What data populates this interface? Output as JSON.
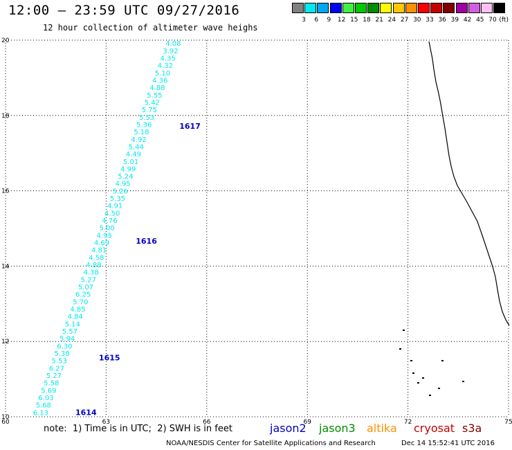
{
  "header": {
    "title": "12:00 — 23:59 UTC 09/27/2016",
    "subtitle": "12 hour collection of altimeter wave heighs"
  },
  "legend": {
    "bins": [
      {
        "label": "3",
        "color": "#808080"
      },
      {
        "label": "6",
        "color": "#00e8f0"
      },
      {
        "label": "9",
        "color": "#00a8f0"
      },
      {
        "label": "12",
        "color": "#0000f0"
      },
      {
        "label": "15",
        "color": "#40f040"
      },
      {
        "label": "18",
        "color": "#00c800"
      },
      {
        "label": "21",
        "color": "#008c00"
      },
      {
        "label": "24",
        "color": "#ffff00"
      },
      {
        "label": "27",
        "color": "#ffc800"
      },
      {
        "label": "30",
        "color": "#ff9000"
      },
      {
        "label": "33",
        "color": "#ff0000"
      },
      {
        "label": "36",
        "color": "#c80000"
      },
      {
        "label": "39",
        "color": "#800000"
      },
      {
        "label": "42",
        "color": "#a000a0"
      },
      {
        "label": "45",
        "color": "#d060e0"
      },
      {
        "label": "70",
        "color": "#ffc0f0"
      },
      {
        "label": "",
        "color": "#000000"
      }
    ],
    "unit": "(ft)"
  },
  "chart_data": {
    "type": "scatter",
    "title": "12:00 — 23:59 UTC 09/27/2016",
    "subtitle": "12 hour collection of altimeter wave heighs",
    "xlim": [
      60,
      75
    ],
    "ylim": [
      10,
      20
    ],
    "x_ticks": [
      "60",
      "63",
      "66",
      "69",
      "72",
      "75"
    ],
    "y_ticks": [
      "10",
      "12",
      "14",
      "16",
      "18",
      "20"
    ],
    "grid": true,
    "point_color": "#00e8f0",
    "label_color": "#0000c8",
    "start": {
      "lon": 61.05,
      "lat": 10.05
    },
    "end": {
      "lon": 65.0,
      "lat": 19.85
    },
    "wave_heights_ft": [
      "6.13",
      "5.68",
      "6.03",
      "5.69",
      "5.58",
      "5.27",
      "6.27",
      "5.53",
      "5.38",
      "6.30",
      "5.94",
      "5.57",
      "5.14",
      "4.84",
      "4.85",
      "5.70",
      "6.25",
      "5.07",
      "5.27",
      "4.38",
      "4.88",
      "4.58",
      "4.81",
      "4.69",
      "4.95",
      "5.00",
      "4.76",
      "4.50",
      "4.91",
      "5.35",
      "5.26",
      "4.95",
      "5.24",
      "4.99",
      "5.01",
      "4.49",
      "5.44",
      "4.92",
      "5.18",
      "5.36",
      "5.53",
      "5.75",
      "5.42",
      "5.55",
      "4.88",
      "4.36",
      "5.10",
      "4.32",
      "4.35",
      "3.92",
      "4.08"
    ],
    "time_labels": [
      {
        "text": "1614",
        "lon": 62.4,
        "lat": 10.05
      },
      {
        "text": "1615",
        "lon": 63.1,
        "lat": 11.5
      },
      {
        "text": "1616",
        "lon": 64.2,
        "lat": 14.6
      },
      {
        "text": "1617",
        "lon": 65.5,
        "lat": 17.65
      }
    ]
  },
  "notes": {
    "text": "note:  1) Time is in UTC;  2) SWH is in feet"
  },
  "satellites": [
    {
      "name": "jason2",
      "color": "#0000c8"
    },
    {
      "name": "jason3",
      "color": "#008c00"
    },
    {
      "name": "altika",
      "color": "#ff9000"
    },
    {
      "name": "cryosat",
      "color": "#c80000"
    },
    {
      "name": "s3a",
      "color": "#800000"
    }
  ],
  "footer": {
    "credit": "NOAA/NESDIS Center for Satellite Applications and Research",
    "timestamp": "Dec 14 15:52:41 UTC 2016"
  }
}
